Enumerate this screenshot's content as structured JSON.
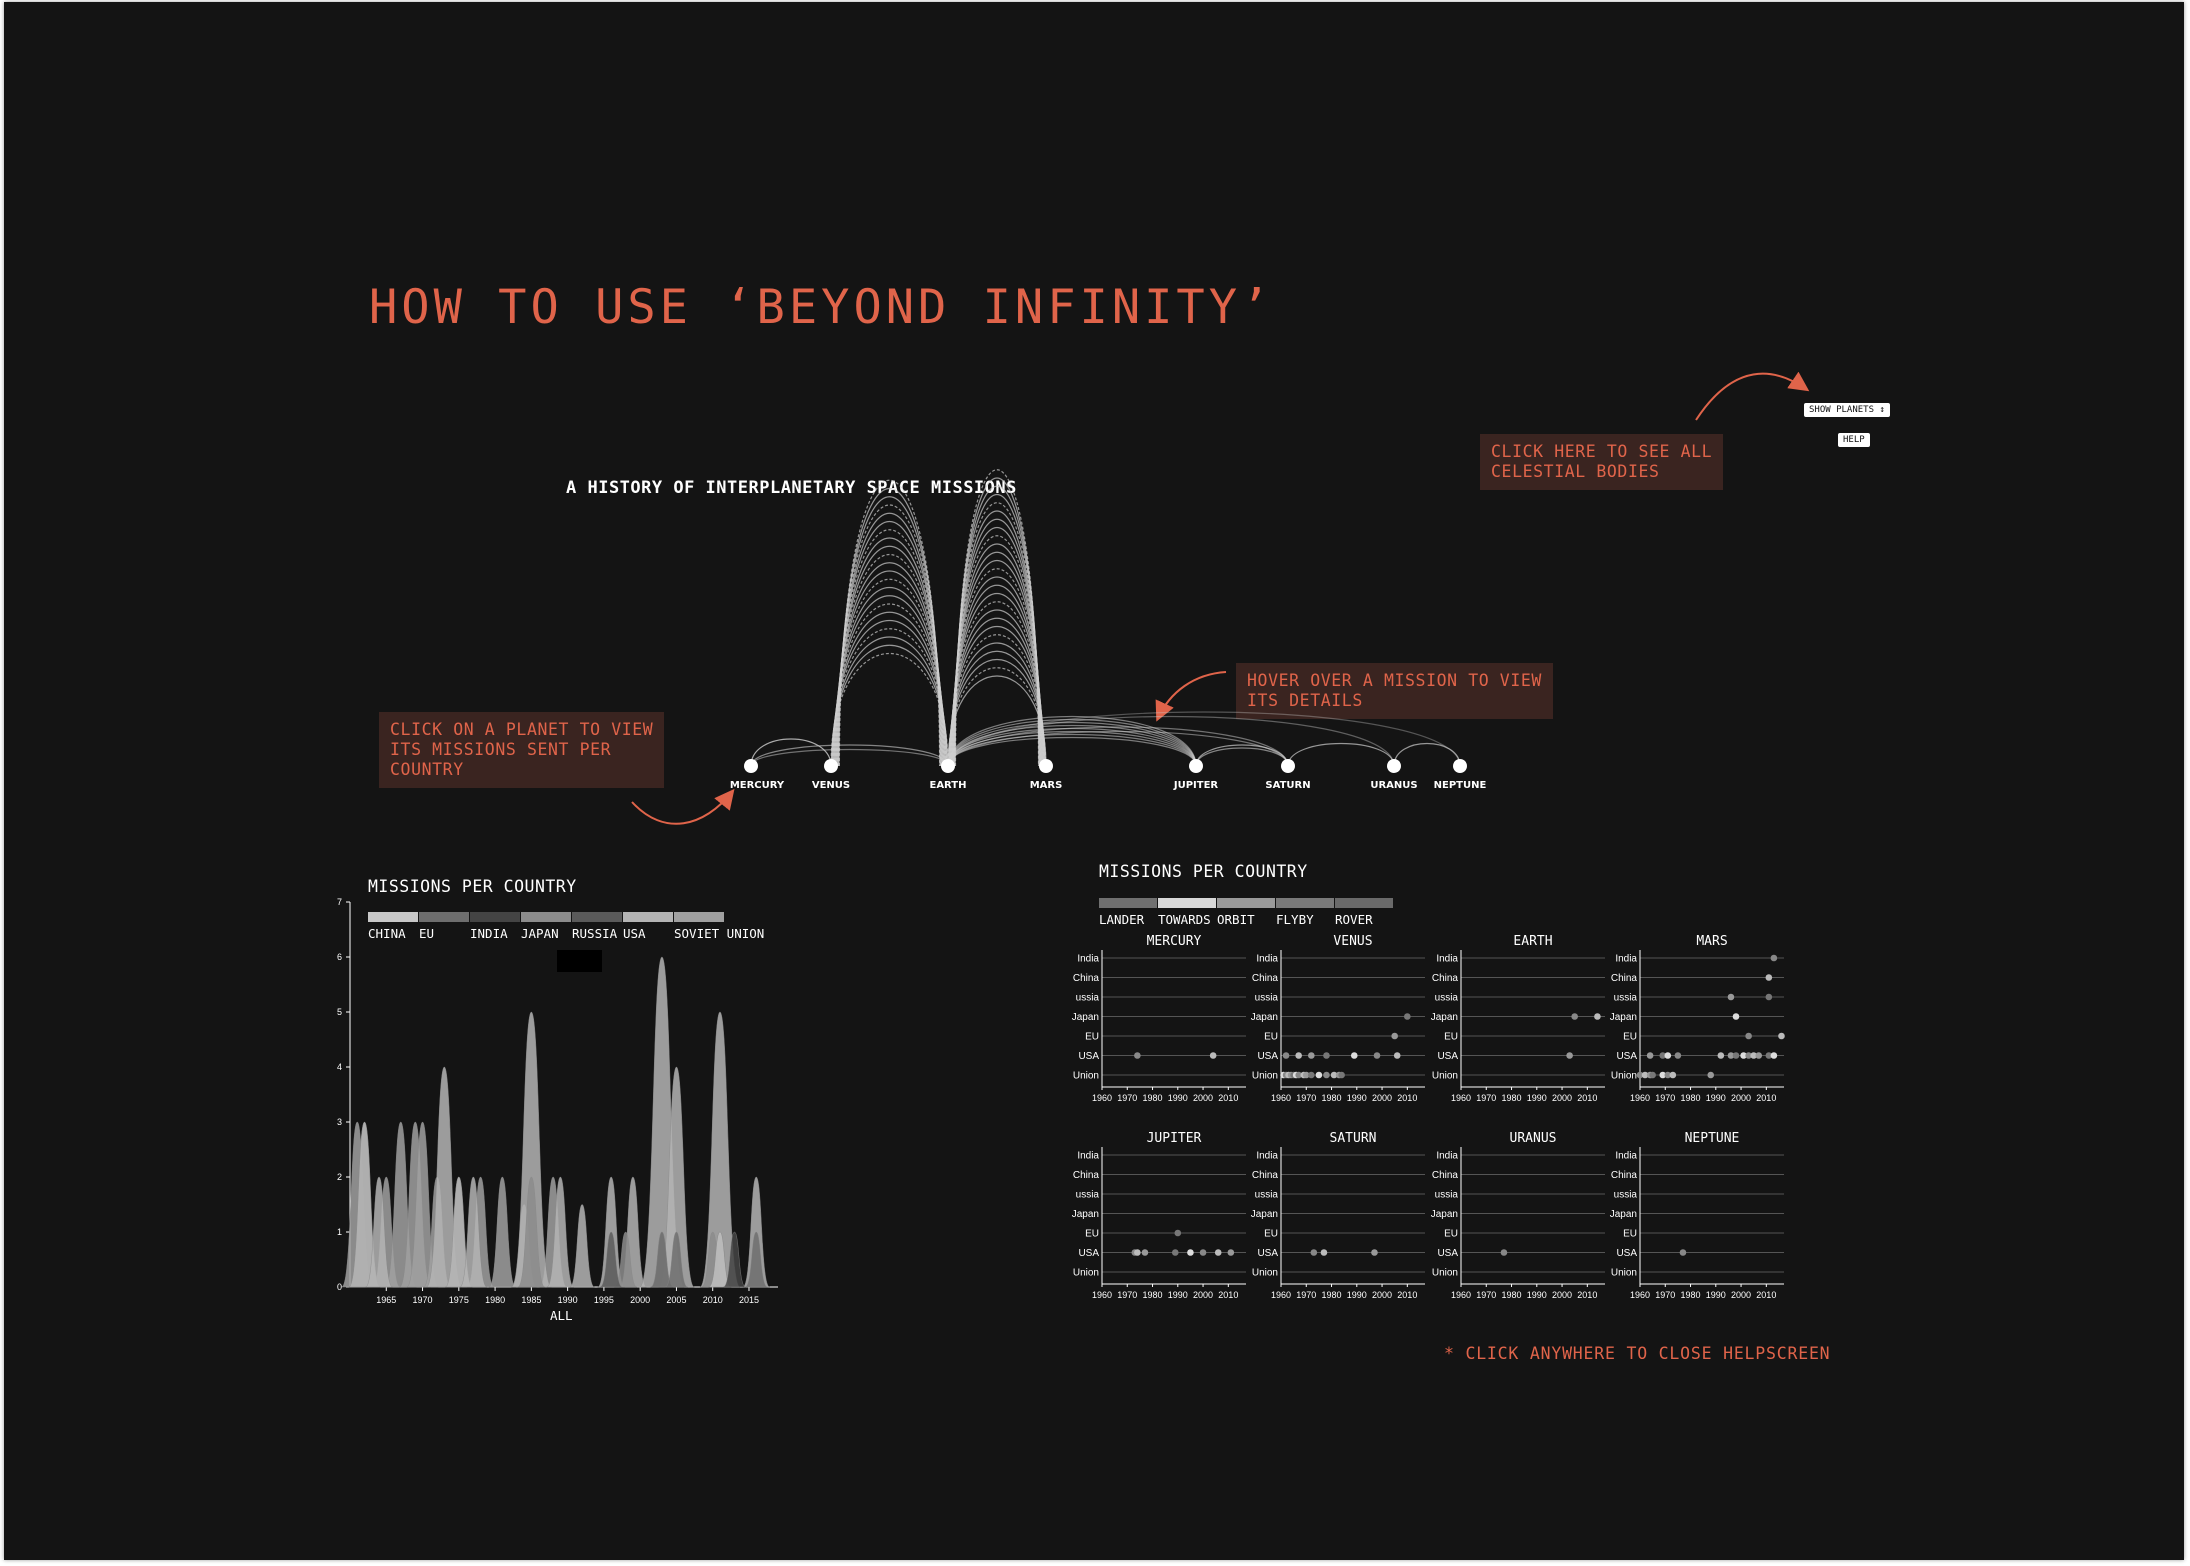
{
  "help": {
    "title": "HOW TO USE ‘BEYOND INFINITY’",
    "callout_bodies": [
      "CLICK HERE TO SEE ALL",
      "CELESTIAL BODIES"
    ],
    "callout_hover": [
      "HOVER OVER A MISSION TO VIEW",
      "ITS DETAILS"
    ],
    "callout_planet": [
      "CLICK ON A PLANET TO VIEW",
      "ITS MISSIONS SENT PER",
      "COUNTRY"
    ],
    "close_note": "* CLICK ANYWHERE TO CLOSE HELPSCREEN",
    "accent_color": "#e0644a",
    "callout_bg": "#3a2420"
  },
  "controls": {
    "show_planets_label": "SHOW PLANETS ↕",
    "help_label": "HELP"
  },
  "arc_diagram": {
    "title": "A HISTORY OF INTERPLANETARY SPACE MISSIONS",
    "planets": [
      "MERCURY",
      "VENUS",
      "EARTH",
      "MARS",
      "JUPITER",
      "SATURN",
      "URANUS",
      "NEPTUNE"
    ]
  },
  "left_chart": {
    "title": "MISSIONS PER COUNTRY",
    "legend": [
      {
        "label": "CHINA",
        "color": "#c8c8c8"
      },
      {
        "label": "EU",
        "color": "#6e6e6e"
      },
      {
        "label": "INDIA",
        "color": "#444444"
      },
      {
        "label": "JAPAN",
        "color": "#8c8c8c"
      },
      {
        "label": "RUSSIA",
        "color": "#5a5a5a"
      },
      {
        "label": "USA",
        "color": "#b4b4b4"
      },
      {
        "label": "SOVIET UNION",
        "color": "#a0a0a0"
      }
    ],
    "footer_label": "ALL"
  },
  "chart_data": [
    {
      "type": "area",
      "title": "MISSIONS PER COUNTRY",
      "xlabel": "ALL",
      "ylim": [
        0,
        7
      ],
      "yticks": [
        0,
        1,
        2,
        3,
        4,
        5,
        6,
        7
      ],
      "xticks": [
        1965,
        1970,
        1975,
        1980,
        1985,
        1990,
        1995,
        2000,
        2005,
        2010,
        2015
      ],
      "xlim": [
        1960,
        2019
      ],
      "series": [
        {
          "name": "SOVIET UNION",
          "peaks": [
            [
              1961,
              3
            ],
            [
              1962,
              3
            ],
            [
              1965,
              2
            ],
            [
              1967,
              3
            ],
            [
              1969,
              3
            ],
            [
              1970,
              3
            ],
            [
              1972,
              2
            ],
            [
              1975,
              2
            ],
            [
              1978,
              2
            ],
            [
              1981,
              2
            ],
            [
              1984,
              1.5
            ],
            [
              1988,
              2
            ]
          ]
        },
        {
          "name": "USA",
          "peaks": [
            [
              1962,
              3
            ],
            [
              1964,
              2
            ],
            [
              1973,
              4
            ],
            [
              1975,
              2
            ],
            [
              1977,
              2
            ],
            [
              1985,
              5
            ],
            [
              1989,
              2
            ],
            [
              1992,
              1.5
            ],
            [
              1996,
              2
            ],
            [
              1999,
              2
            ],
            [
              2003,
              6
            ],
            [
              2005,
              4
            ],
            [
              2011,
              5
            ],
            [
              2016,
              2
            ]
          ]
        },
        {
          "name": "JAPAN",
          "peaks": [
            [
              1985,
              2
            ],
            [
              1998,
              1
            ],
            [
              2003,
              1
            ],
            [
              2010,
              1
            ]
          ]
        },
        {
          "name": "EU",
          "peaks": [
            [
              2003,
              1
            ],
            [
              2005,
              1
            ],
            [
              2016,
              1
            ]
          ]
        },
        {
          "name": "RUSSIA",
          "peaks": [
            [
              1996,
              1
            ],
            [
              2011,
              1
            ]
          ]
        },
        {
          "name": "CHINA",
          "peaks": [
            [
              2011,
              1
            ]
          ]
        },
        {
          "name": "INDIA",
          "peaks": [
            [
              2013,
              1
            ]
          ]
        }
      ]
    },
    {
      "type": "scatter",
      "title": "MISSIONS PER COUNTRY",
      "legend": [
        "LANDER",
        "TOWARDS",
        "ORBIT",
        "FLYBY",
        "ROVER"
      ],
      "legend_colors": [
        "#707070",
        "#d8d8d8",
        "#9a9a9a",
        "#7a7a7a",
        "#6a6a6a"
      ],
      "rows": [
        "India",
        "China",
        "Russia",
        "Japan",
        "EU",
        "USA",
        "Union"
      ],
      "xticks": [
        1960,
        1970,
        1980,
        1990,
        2000,
        2010
      ],
      "xlim": [
        1960,
        2017
      ],
      "panels": [
        {
          "planet": "MERCURY",
          "points": [
            {
              "year": 1974,
              "row": "USA"
            },
            {
              "year": 2004,
              "row": "USA"
            }
          ]
        },
        {
          "planet": "VENUS",
          "points": [
            {
              "year": 1962,
              "row": "USA"
            },
            {
              "year": 1967,
              "row": "USA"
            },
            {
              "year": 1972,
              "row": "USA"
            },
            {
              "year": 1978,
              "row": "USA"
            },
            {
              "year": 1989,
              "row": "USA"
            },
            {
              "year": 1998,
              "row": "USA"
            },
            {
              "year": 2006,
              "row": "USA"
            },
            {
              "year": 2005,
              "row": "EU"
            },
            {
              "year": 2010,
              "row": "Japan"
            },
            {
              "year": 1961,
              "row": "Union"
            },
            {
              "year": 1962,
              "row": "Union"
            },
            {
              "year": 1963,
              "row": "Union"
            },
            {
              "year": 1964,
              "row": "Union"
            },
            {
              "year": 1965,
              "row": "Union"
            },
            {
              "year": 1966,
              "row": "Union"
            },
            {
              "year": 1967,
              "row": "Union"
            },
            {
              "year": 1969,
              "row": "Union"
            },
            {
              "year": 1970,
              "row": "Union"
            },
            {
              "year": 1972,
              "row": "Union"
            },
            {
              "year": 1975,
              "row": "Union"
            },
            {
              "year": 1978,
              "row": "Union"
            },
            {
              "year": 1981,
              "row": "Union"
            },
            {
              "year": 1983,
              "row": "Union"
            },
            {
              "year": 1984,
              "row": "Union"
            }
          ]
        },
        {
          "planet": "EARTH",
          "points": [
            {
              "year": 2005,
              "row": "Japan"
            },
            {
              "year": 2014,
              "row": "Japan"
            },
            {
              "year": 2003,
              "row": "USA"
            }
          ]
        },
        {
          "planet": "MARS",
          "points": [
            {
              "year": 2013,
              "row": "India"
            },
            {
              "year": 2011,
              "row": "China"
            },
            {
              "year": 1996,
              "row": "Russia"
            },
            {
              "year": 2011,
              "row": "Russia"
            },
            {
              "year": 1998,
              "row": "Japan"
            },
            {
              "year": 2003,
              "row": "EU"
            },
            {
              "year": 2016,
              "row": "EU"
            },
            {
              "year": 1964,
              "row": "USA"
            },
            {
              "year": 1969,
              "row": "USA"
            },
            {
              "year": 1971,
              "row": "USA"
            },
            {
              "year": 1975,
              "row": "USA"
            },
            {
              "year": 1992,
              "row": "USA"
            },
            {
              "year": 1996,
              "row": "USA"
            },
            {
              "year": 1998,
              "row": "USA"
            },
            {
              "year": 2001,
              "row": "USA"
            },
            {
              "year": 2003,
              "row": "USA"
            },
            {
              "year": 2005,
              "row": "USA"
            },
            {
              "year": 2007,
              "row": "USA"
            },
            {
              "year": 2011,
              "row": "USA"
            },
            {
              "year": 2013,
              "row": "USA"
            },
            {
              "year": 1960,
              "row": "Union"
            },
            {
              "year": 1962,
              "row": "Union"
            },
            {
              "year": 1964,
              "row": "Union"
            },
            {
              "year": 1965,
              "row": "Union"
            },
            {
              "year": 1969,
              "row": "Union"
            },
            {
              "year": 1971,
              "row": "Union"
            },
            {
              "year": 1973,
              "row": "Union"
            },
            {
              "year": 1988,
              "row": "Union"
            }
          ]
        },
        {
          "planet": "JUPITER",
          "points": [
            {
              "year": 1973,
              "row": "USA"
            },
            {
              "year": 1974,
              "row": "USA"
            },
            {
              "year": 1977,
              "row": "USA"
            },
            {
              "year": 1989,
              "row": "USA"
            },
            {
              "year": 1995,
              "row": "USA"
            },
            {
              "year": 2000,
              "row": "USA"
            },
            {
              "year": 2006,
              "row": "USA"
            },
            {
              "year": 2011,
              "row": "USA"
            },
            {
              "year": 1990,
              "row": "EU"
            }
          ]
        },
        {
          "planet": "SATURN",
          "points": [
            {
              "year": 1973,
              "row": "USA"
            },
            {
              "year": 1977,
              "row": "USA"
            },
            {
              "year": 1997,
              "row": "USA"
            }
          ]
        },
        {
          "planet": "URANUS",
          "points": [
            {
              "year": 1977,
              "row": "USA"
            }
          ]
        },
        {
          "planet": "NEPTUNE",
          "points": [
            {
              "year": 1977,
              "row": "USA"
            }
          ]
        }
      ]
    }
  ],
  "right_chart": {
    "title": "MISSIONS PER COUNTRY",
    "row_labels_visible": [
      "India",
      "China",
      "ussia",
      "Japan",
      "EU",
      "USA",
      "Union"
    ]
  }
}
